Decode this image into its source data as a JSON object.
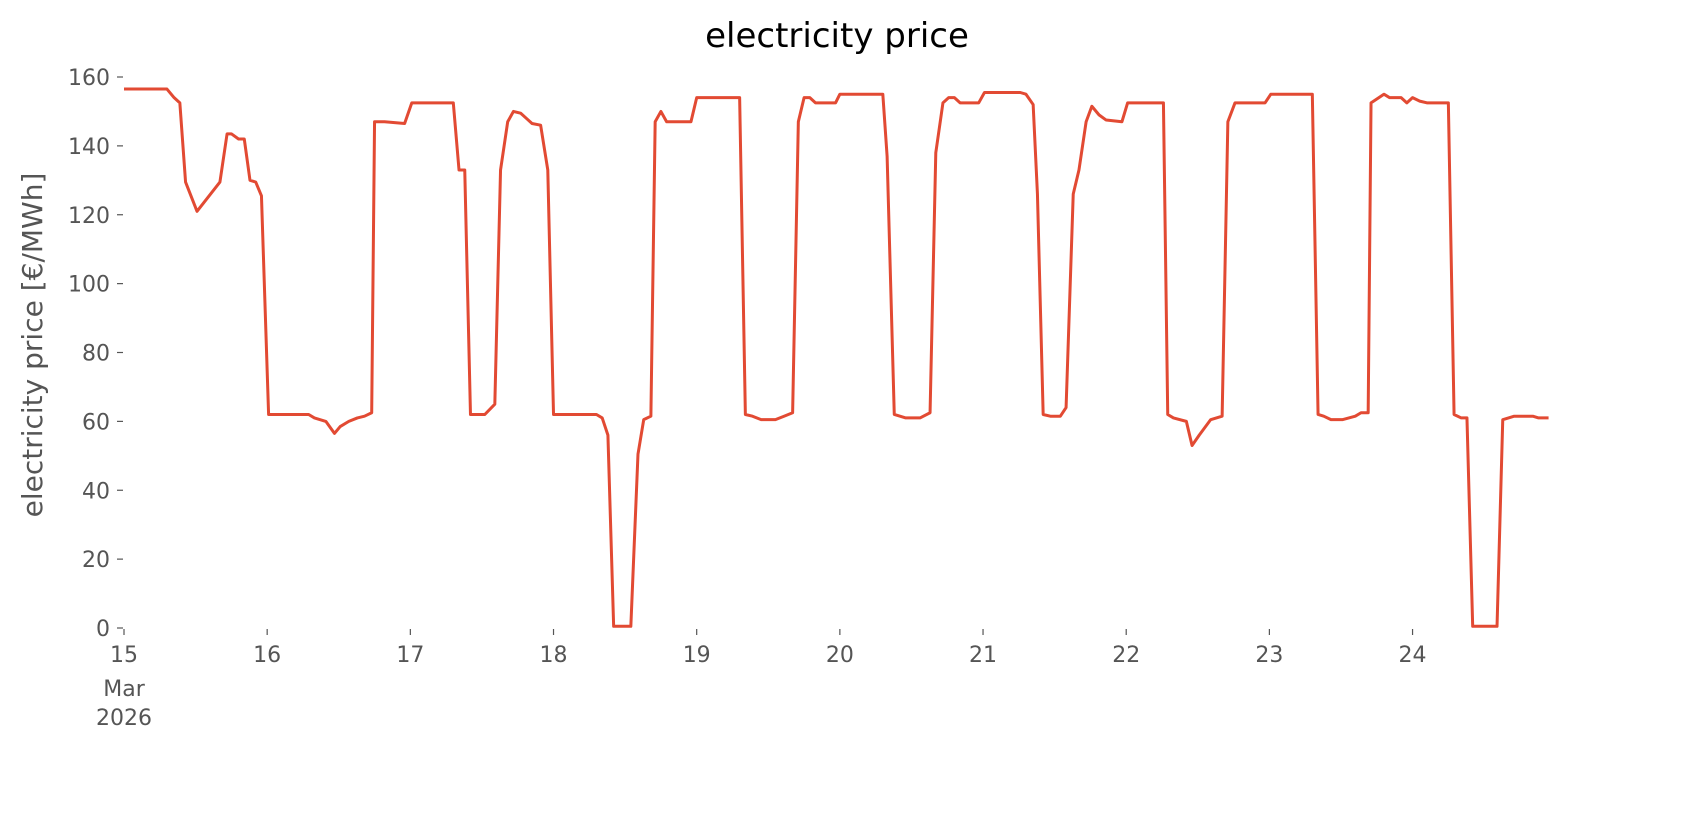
{
  "chart_data": {
    "type": "line",
    "title": "electricity price",
    "ylabel": "electricity price [€/MWh]",
    "x_month": "Mar",
    "x_year": "2026",
    "color": "#E24A33",
    "x": [
      15.0,
      15.3,
      15.35,
      15.39,
      15.43,
      15.51,
      15.67,
      15.72,
      15.75,
      15.8,
      15.84,
      15.88,
      15.92,
      15.96,
      16.01,
      16.29,
      16.33,
      16.41,
      16.47,
      16.51,
      16.57,
      16.63,
      16.68,
      16.73,
      16.75,
      16.82,
      16.96,
      17.01,
      17.3,
      17.34,
      17.38,
      17.42,
      17.52,
      17.59,
      17.63,
      17.68,
      17.72,
      17.77,
      17.81,
      17.85,
      17.91,
      17.96,
      18.0,
      18.3,
      18.34,
      18.38,
      18.42,
      18.54,
      18.59,
      18.63,
      18.68,
      18.71,
      18.75,
      18.79,
      18.96,
      19.0,
      19.3,
      19.34,
      19.39,
      19.45,
      19.55,
      19.61,
      19.67,
      19.71,
      19.75,
      19.79,
      19.83,
      19.97,
      20.0,
      20.3,
      20.33,
      20.38,
      20.46,
      20.56,
      20.63,
      20.67,
      20.72,
      20.76,
      20.8,
      20.84,
      20.97,
      21.01,
      21.26,
      21.3,
      21.35,
      21.38,
      21.42,
      21.47,
      21.54,
      21.58,
      21.63,
      21.67,
      21.72,
      21.76,
      21.81,
      21.86,
      21.97,
      22.01,
      22.26,
      22.29,
      22.33,
      22.42,
      22.46,
      22.51,
      22.59,
      22.67,
      22.71,
      22.76,
      22.97,
      23.01,
      23.3,
      23.34,
      23.38,
      23.43,
      23.51,
      23.6,
      23.64,
      23.69,
      23.71,
      23.8,
      23.84,
      23.92,
      23.96,
      24.0,
      24.05,
      24.1,
      24.25,
      24.29,
      24.34,
      24.38,
      24.42,
      24.59,
      24.63,
      24.67,
      24.71,
      24.84,
      24.88,
      24.95
    ],
    "values": [
      156.5,
      156.5,
      154,
      152.5,
      129.5,
      121,
      129.5,
      143.5,
      143.5,
      142,
      142,
      130,
      129.5,
      125.5,
      62,
      62,
      61,
      60,
      56.5,
      58.5,
      60,
      61,
      61.5,
      62.5,
      147,
      147,
      146.5,
      152.5,
      152.5,
      133,
      133,
      62,
      62,
      65,
      133,
      147,
      150,
      149.5,
      148,
      146.5,
      146,
      133,
      62,
      62,
      61,
      56,
      0.5,
      0.5,
      50.5,
      60.5,
      61.5,
      147,
      150,
      147,
      147,
      154,
      154,
      62,
      61.5,
      60.5,
      60.5,
      61.5,
      62.5,
      147,
      154,
      154,
      152.5,
      152.5,
      155,
      155,
      137,
      62,
      61,
      61,
      62.5,
      138,
      152.5,
      154,
      154,
      152.5,
      152.5,
      155.5,
      155.5,
      155,
      152,
      126,
      62,
      61.5,
      61.5,
      64,
      126,
      133,
      147,
      151.5,
      149,
      147.5,
      147,
      152.5,
      152.5,
      62,
      61,
      60,
      53,
      56,
      60.5,
      61.5,
      147,
      152.5,
      152.5,
      155,
      155,
      62,
      61.5,
      60.5,
      60.5,
      61.5,
      62.5,
      62.5,
      152.5,
      155,
      154,
      154,
      152.5,
      154,
      153,
      152.5,
      152.5,
      62,
      61,
      61,
      0.5,
      0.5,
      60.5,
      61,
      61.5,
      61.5,
      61,
      61
    ],
    "xlim": [
      15,
      24.96
    ],
    "xticks": [
      15,
      16,
      17,
      18,
      19,
      20,
      21,
      22,
      23,
      24
    ],
    "ylim": [
      0,
      160
    ],
    "yticks": [
      0,
      20,
      40,
      60,
      80,
      100,
      120,
      140,
      160
    ],
    "grid": false
  }
}
